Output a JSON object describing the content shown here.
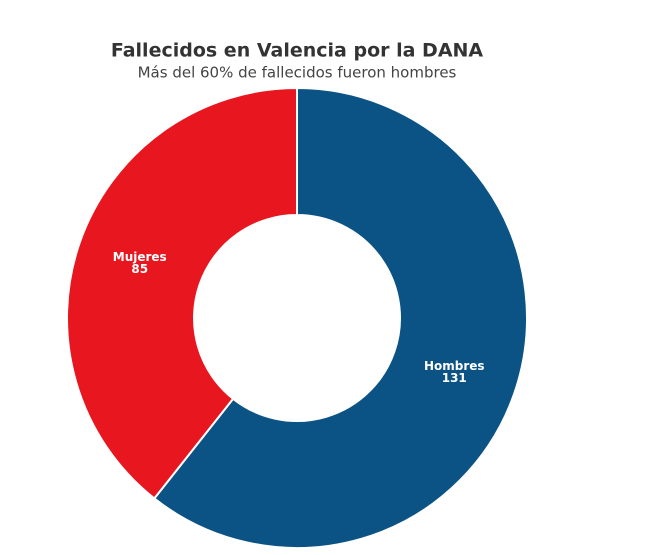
{
  "chart_data": {
    "type": "donut",
    "title": "Fallecidos en Valencia por la DANA",
    "subtitle": "Más del 60% de fallecidos fueron hombres",
    "categories": [
      "Hombres",
      "Mujeres"
    ],
    "values": [
      131,
      85
    ],
    "colors": [
      "#0b5384",
      "#e8161e"
    ]
  }
}
